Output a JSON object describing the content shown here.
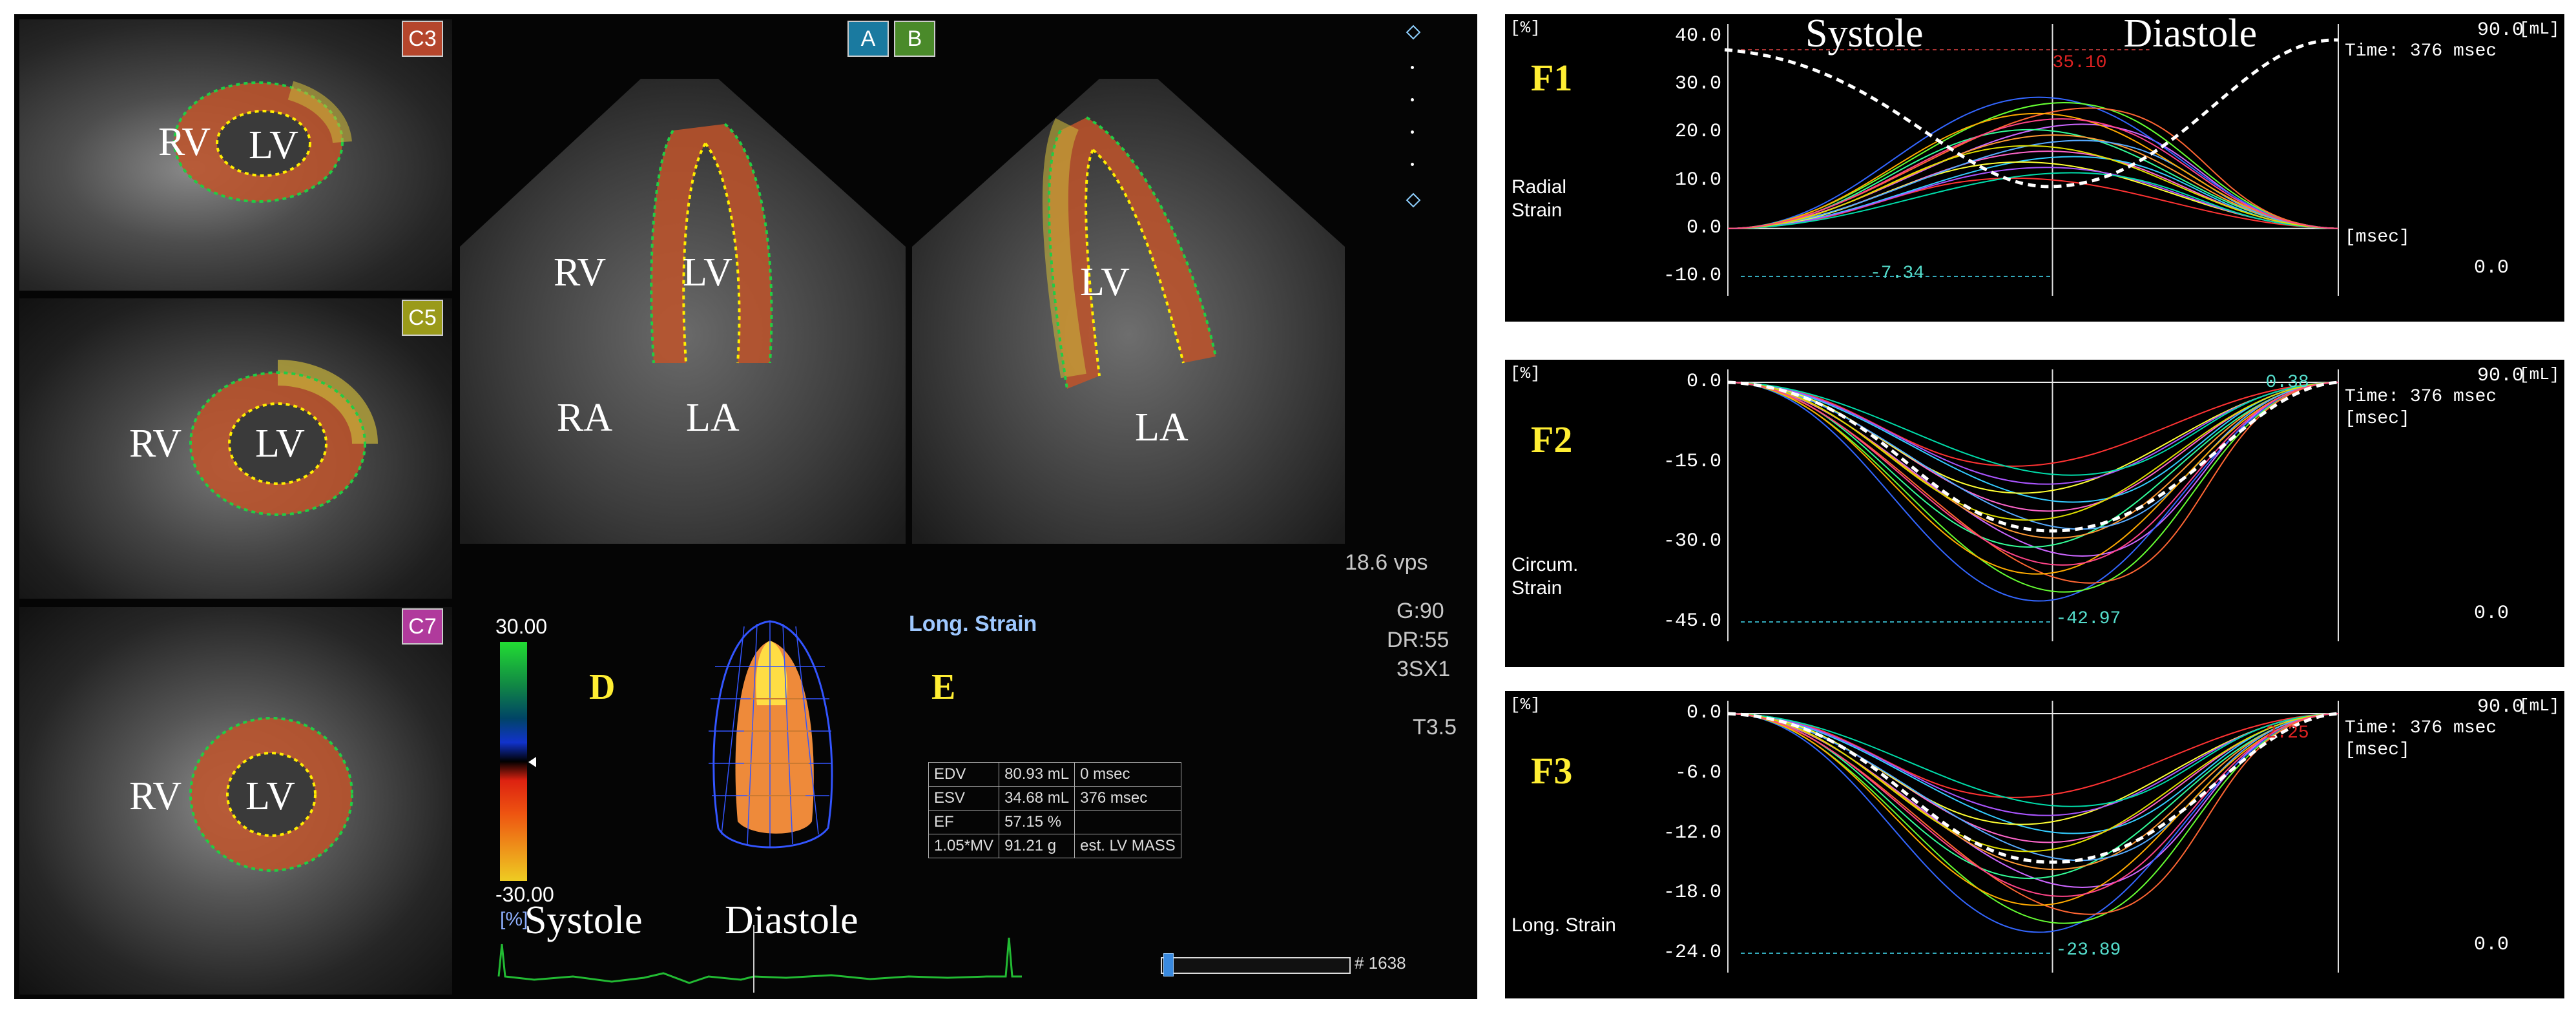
{
  "left": {
    "badges": {
      "c3": "C3",
      "c5": "C5",
      "c7": "C7",
      "a": "A",
      "b": "B"
    },
    "labels": {
      "c3_rv": "RV",
      "c3_lv": "LV",
      "c5_rv": "RV",
      "c5_lv": "LV",
      "c7_rv": "RV",
      "c7_lv": "LV",
      "a_rv": "RV",
      "a_lv": "LV",
      "a_ra": "RA",
      "a_la": "LA",
      "b_lv": "LV",
      "b_la": "LA",
      "d": "D",
      "e": "E"
    },
    "info": {
      "vps": "18.6 vps",
      "g": "G:90",
      "dr": "DR:55",
      "probe": "3SX1",
      "t": "T3.5"
    },
    "colorbar": {
      "max": "30.00",
      "min": "-30.00",
      "unit": "[%]"
    },
    "long_strain": "Long. Strain",
    "phase": {
      "systole": "Systole",
      "diastole": "Diastole"
    },
    "frame": "# 1638",
    "volumes": [
      [
        "EDV",
        "80.93 mL",
        "0 msec"
      ],
      [
        "ESV",
        "34.68 mL",
        "376 msec"
      ],
      [
        "EF",
        "57.15 %",
        ""
      ],
      [
        "1.05*MV",
        "91.21 g",
        "est. LV MASS"
      ]
    ]
  },
  "charts": [
    {
      "id": "F1",
      "label": "F1",
      "strain": [
        "Radial",
        "Strain"
      ],
      "ticks": [
        "40.0",
        "30.0",
        "20.0",
        "10.0",
        "0.0",
        "-10.0"
      ],
      "unit": "[%]",
      "right_unit": "[mL]",
      "right_top": "90.0",
      "right_time": "Time: 376 msec",
      "right_ms": "[msec]",
      "right_bottom": "0.0",
      "phase_left": "Systole",
      "phase_right": "Diastole",
      "peak": "35.10",
      "low": "-7.34"
    },
    {
      "id": "F2",
      "label": "F2",
      "strain": [
        "Circum.",
        "Strain"
      ],
      "ticks": [
        "0.0",
        "-15.0",
        "-30.0",
        "-45.0"
      ],
      "unit": "[%]",
      "right_unit": "[mL]",
      "right_top": "90.0",
      "right_time": "Time: 376 msec",
      "right_ms": "[msec]",
      "right_bottom": "0.0",
      "peak": "0.38",
      "low": "-42.97"
    },
    {
      "id": "F3",
      "label": "F3",
      "strain": [
        "Long. Strain"
      ],
      "ticks": [
        "0.0",
        "-6.0",
        "-12.0",
        "-18.0",
        "-24.0"
      ],
      "unit": "[%]",
      "right_unit": "[mL]",
      "right_top": "90.0",
      "right_time": "Time: 376 msec",
      "right_ms": "[msec]",
      "right_bottom": "0.0",
      "peak": "2.25",
      "low": "-23.89"
    }
  ],
  "colors": {
    "myo": "#c0542a",
    "myo_yellow": "#c8b43a",
    "contour_inner": "#ffee00",
    "contour_outer": "#22cc44",
    "curve_white": "#ffffff"
  }
}
